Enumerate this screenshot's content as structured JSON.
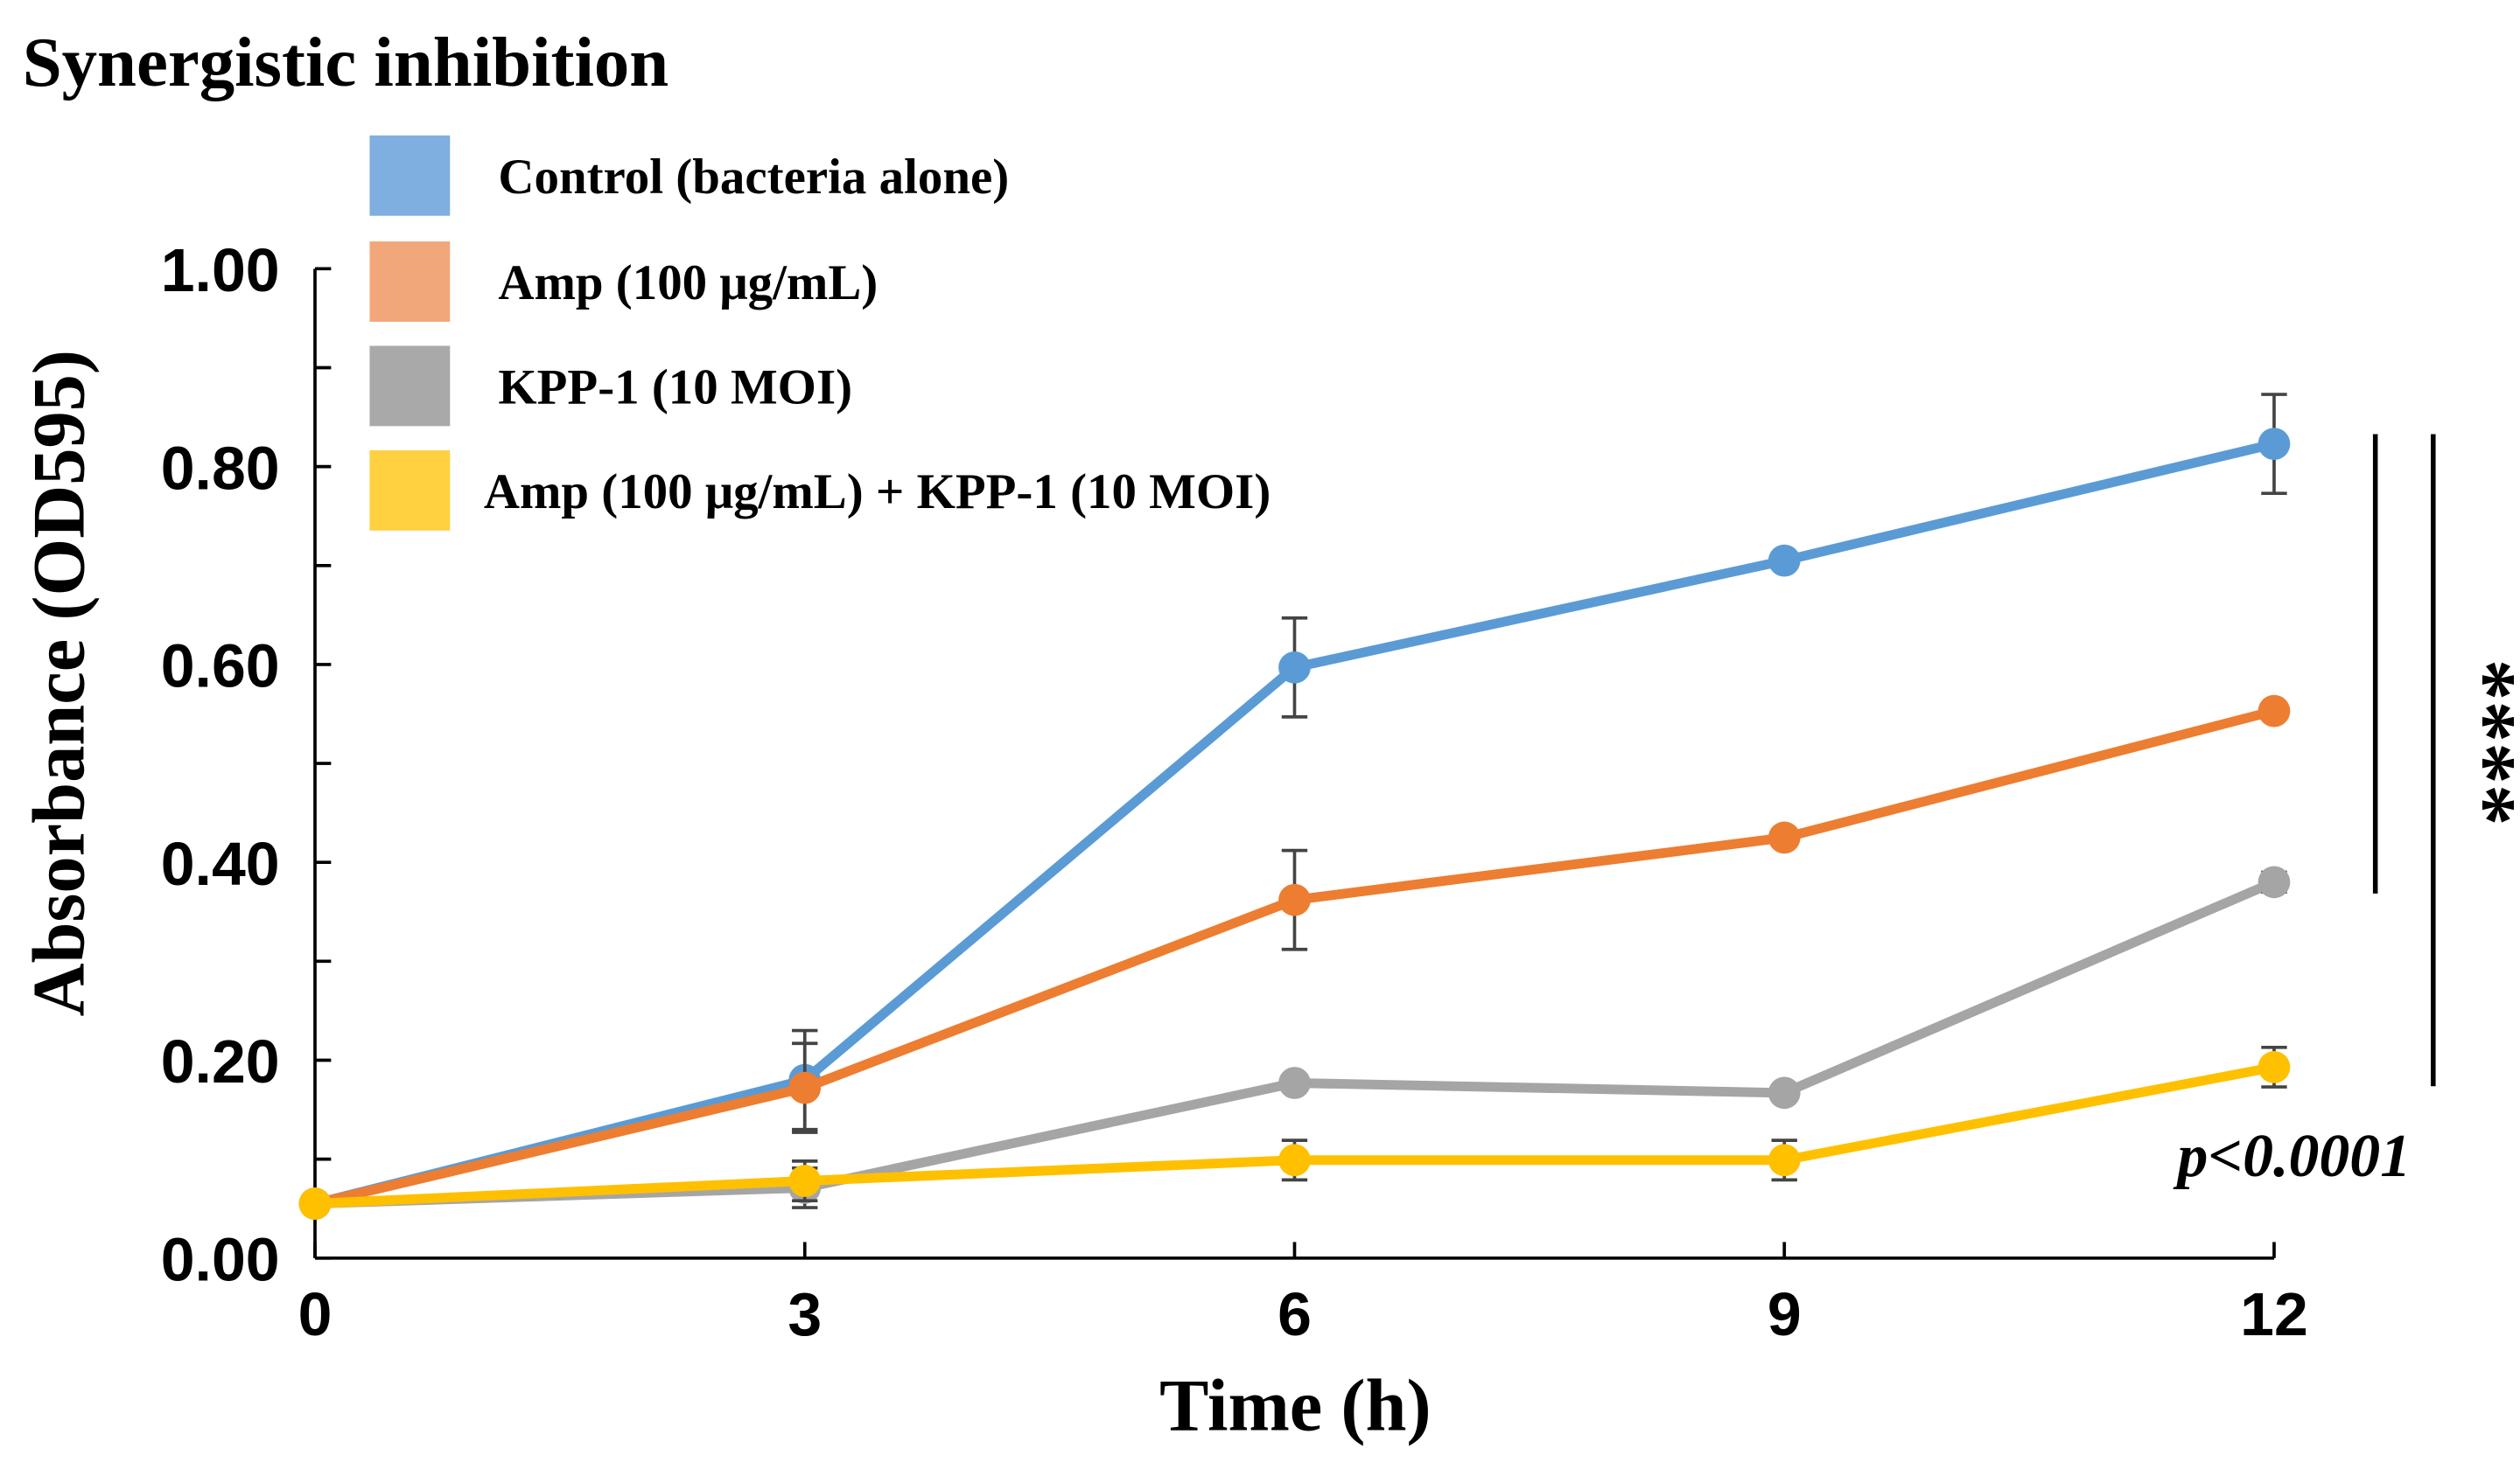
{
  "chart_data": {
    "type": "line",
    "title": "Synergistic inhibition",
    "xlabel": "Time (h)",
    "ylabel": "Absorbance (OD595)",
    "x": [
      0,
      3,
      6,
      9,
      12
    ],
    "xticks": [
      "0",
      "3",
      "6",
      "9",
      "12"
    ],
    "yticks": [
      "0.00",
      "0.20",
      "0.40",
      "0.60",
      "0.80",
      "1.00"
    ],
    "ylim": [
      0,
      1.0
    ],
    "xlim": [
      0,
      12
    ],
    "grid": false,
    "legend_position": "top-left",
    "series": [
      {
        "name": "Control (bacteria alone)",
        "color": "#5b9bd5",
        "legend_color": "#7fafe0",
        "values": [
          0.055,
          0.18,
          0.597,
          0.705,
          0.823
        ],
        "errors": [
          0.005,
          0.05,
          0.05,
          0.005,
          0.05
        ]
      },
      {
        "name": "Amp (100 μg/mL)",
        "color": "#ed7d31",
        "legend_color": "#f2a77a",
        "values": [
          0.055,
          0.172,
          0.362,
          0.425,
          0.553
        ],
        "errors": [
          0.005,
          0.045,
          0.05,
          0.005,
          0.005
        ]
      },
      {
        "name": "KPP-1 (10 MOI)",
        "color": "#a5a5a5",
        "legend_color": "#a9a9a9",
        "values": [
          0.055,
          0.071,
          0.177,
          0.167,
          0.38
        ],
        "errors": [
          0.005,
          0.02,
          0.005,
          0.005,
          0.01
        ]
      },
      {
        "name": "Amp (100 μg/mL) + KPP-1 (10 MOI)",
        "color": "#ffc000",
        "legend_color": "#ffd040",
        "values": [
          0.055,
          0.078,
          0.099,
          0.099,
          0.193
        ],
        "errors": [
          0.005,
          0.02,
          0.02,
          0.02,
          0.02
        ]
      }
    ],
    "annotations": {
      "significance": "****",
      "pvalue": "p<0.0001"
    }
  }
}
